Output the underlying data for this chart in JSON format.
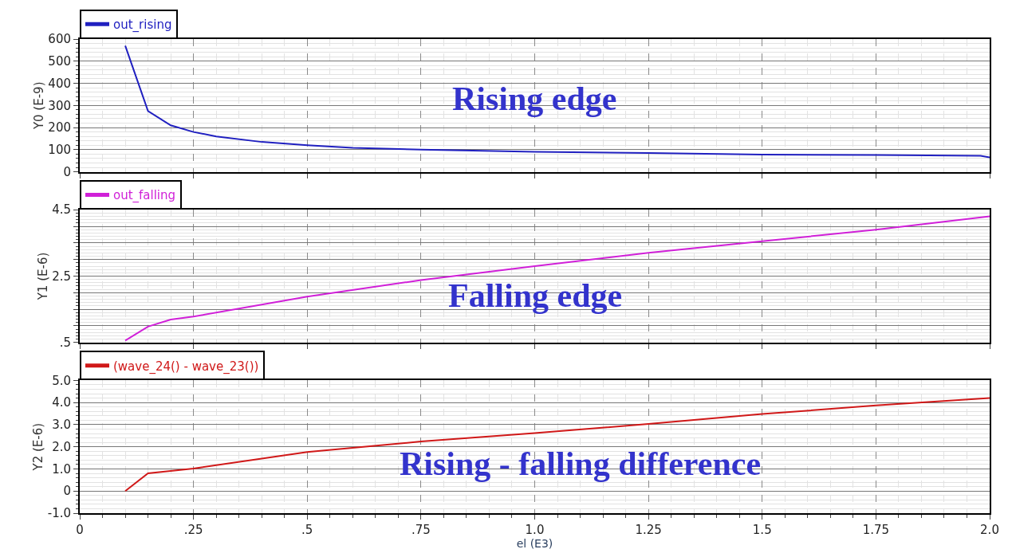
{
  "chart_data": [
    {
      "type": "line",
      "ylabel": "Y0 (E-9)",
      "x": [
        0.1,
        0.15,
        0.2,
        0.25,
        0.3,
        0.4,
        0.5,
        0.6,
        0.75,
        1.0,
        1.25,
        1.5,
        1.75,
        1.98,
        2.0
      ],
      "series": [
        {
          "name": "out_rising",
          "color": "#2020c0",
          "values": [
            570,
            275,
            210,
            180,
            160,
            135,
            120,
            108,
            100,
            90,
            85,
            78,
            76,
            72,
            65
          ]
        }
      ],
      "xlim": [
        0,
        2.0
      ],
      "ylim": [
        0,
        600
      ],
      "yticks": [
        0,
        100,
        200,
        300,
        400,
        500,
        600
      ],
      "tick_labels": "y",
      "grid": true,
      "legend": "top left",
      "annotations": [
        "Rising edge"
      ]
    },
    {
      "type": "line",
      "ylabel": "Y1 (E-6)",
      "x": [
        0.1,
        0.15,
        0.2,
        0.25,
        0.5,
        0.75,
        1.0,
        1.25,
        1.5,
        1.75,
        2.0
      ],
      "series": [
        {
          "name": "out_falling",
          "color": "#d020d8",
          "values": [
            0.56,
            0.98,
            1.19,
            1.28,
            1.88,
            2.38,
            2.8,
            3.2,
            3.55,
            3.9,
            4.3
          ]
        }
      ],
      "xlim": [
        0,
        2.0
      ],
      "ylim": [
        0.5,
        4.5
      ],
      "yticks": [
        {
          "value": 0.5,
          "label": ".5"
        },
        {
          "value": 1.0,
          "label": null
        },
        {
          "value": 1.5,
          "label": null
        },
        {
          "value": 2.0,
          "label": null
        },
        2.5,
        {
          "value": 3.0,
          "label": null
        },
        {
          "value": 3.5,
          "label": null
        },
        {
          "value": 4.0,
          "label": null
        },
        4.5
      ],
      "tick_labels": "y",
      "grid": true,
      "legend": "top left",
      "annotations": [
        "Falling edge"
      ]
    },
    {
      "type": "line",
      "xlabel": "el (E3)",
      "ylabel": "Y2 (E-6)",
      "x": [
        0.1,
        0.15,
        0.25,
        0.5,
        0.75,
        1.0,
        1.25,
        1.5,
        1.75,
        2.0
      ],
      "series": [
        {
          "name": "(wave_24() - wave_23())",
          "color": "#d01818",
          "values": [
            0.0,
            0.8,
            1.02,
            1.76,
            2.24,
            2.62,
            3.03,
            3.48,
            3.87,
            4.2
          ]
        }
      ],
      "xlim": [
        0,
        2.0
      ],
      "ylim": [
        -1.0,
        5.0
      ],
      "xticks": [
        0,
        {
          "value": 0.25,
          "label": ".25"
        },
        {
          "value": 0.5,
          "label": ".5"
        },
        {
          "value": 0.75,
          "label": ".75"
        },
        {
          "value": 1.0,
          "label": "1.0"
        },
        1.25,
        1.5,
        1.75,
        {
          "value": 2.0,
          "label": "2.0"
        }
      ],
      "yticks": [
        {
          "value": -1.0,
          "label": "-1.0"
        },
        0,
        {
          "value": 1.0,
          "label": "1.0"
        },
        {
          "value": 2.0,
          "label": "2.0"
        },
        {
          "value": 3.0,
          "label": "3.0"
        },
        {
          "value": 4.0,
          "label": "4.0"
        },
        {
          "value": 5.0,
          "label": "5.0"
        }
      ],
      "grid": true,
      "legend": "top left",
      "annotations": [
        "Rising - falling difference"
      ]
    }
  ]
}
